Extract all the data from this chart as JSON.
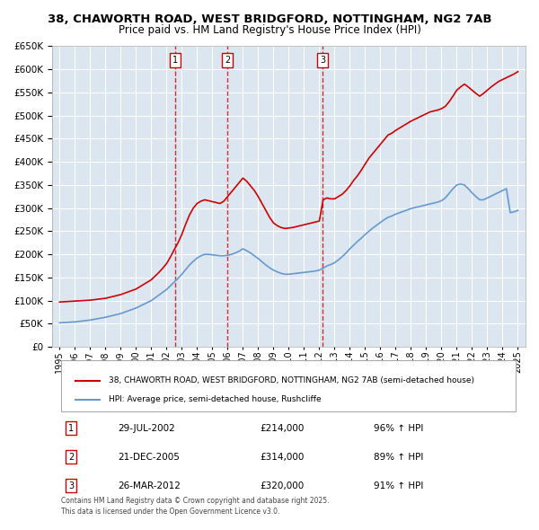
{
  "title_line1": "38, CHAWORTH ROAD, WEST BRIDGFORD, NOTTINGHAM, NG2 7AB",
  "title_line2": "Price paid vs. HM Land Registry's House Price Index (HPI)",
  "bg_color": "#dce6f1",
  "plot_bg_color": "#dce6f1",
  "grid_color": "#ffffff",
  "red_line_color": "#cc0000",
  "blue_line_color": "#6699cc",
  "ylim": [
    0,
    650000
  ],
  "yticks": [
    0,
    50000,
    100000,
    150000,
    200000,
    250000,
    300000,
    350000,
    400000,
    450000,
    500000,
    550000,
    600000,
    650000
  ],
  "xlim_start": 1994.5,
  "xlim_end": 2025.5,
  "xticks": [
    1995,
    1996,
    1997,
    1998,
    1999,
    2000,
    2001,
    2002,
    2003,
    2004,
    2005,
    2006,
    2007,
    2008,
    2009,
    2010,
    2011,
    2012,
    2013,
    2014,
    2015,
    2016,
    2017,
    2018,
    2019,
    2020,
    2021,
    2022,
    2023,
    2024,
    2025
  ],
  "transactions": [
    {
      "num": 1,
      "date": "29-JUL-2002",
      "year": 2002.57,
      "price": 214000,
      "hpi_pct": "96%",
      "hpi_dir": "↑"
    },
    {
      "num": 2,
      "date": "21-DEC-2005",
      "year": 2005.97,
      "price": 314000,
      "hpi_pct": "89%",
      "hpi_dir": "↑"
    },
    {
      "num": 3,
      "date": "26-MAR-2012",
      "year": 2012.23,
      "price": 320000,
      "hpi_pct": "91%",
      "hpi_dir": "↑"
    }
  ],
  "legend_label_red": "38, CHAWORTH ROAD, WEST BRIDGFORD, NOTTINGHAM, NG2 7AB (semi-detached house)",
  "legend_label_blue": "HPI: Average price, semi-detached house, Rushcliffe",
  "footer": "Contains HM Land Registry data © Crown copyright and database right 2025.\nThis data is licensed under the Open Government Licence v3.0.",
  "red_line_x": [
    1995.0,
    1995.25,
    1995.5,
    1995.75,
    1996.0,
    1996.25,
    1996.5,
    1996.75,
    1997.0,
    1997.25,
    1997.5,
    1997.75,
    1998.0,
    1998.25,
    1998.5,
    1998.75,
    1999.0,
    1999.25,
    1999.5,
    1999.75,
    2000.0,
    2000.25,
    2000.5,
    2000.75,
    2001.0,
    2001.25,
    2001.5,
    2001.75,
    2002.0,
    2002.25,
    2002.5,
    2002.75,
    2003.0,
    2003.25,
    2003.5,
    2003.75,
    2004.0,
    2004.25,
    2004.5,
    2004.75,
    2005.0,
    2005.25,
    2005.5,
    2005.75,
    2006.0,
    2006.25,
    2006.5,
    2006.75,
    2007.0,
    2007.25,
    2007.5,
    2007.75,
    2008.0,
    2008.25,
    2008.5,
    2008.75,
    2009.0,
    2009.25,
    2009.5,
    2009.75,
    2010.0,
    2010.25,
    2010.5,
    2010.75,
    2011.0,
    2011.25,
    2011.5,
    2011.75,
    2012.0,
    2012.25,
    2012.5,
    2012.75,
    2013.0,
    2013.25,
    2013.5,
    2013.75,
    2014.0,
    2014.25,
    2014.5,
    2014.75,
    2015.0,
    2015.25,
    2015.5,
    2015.75,
    2016.0,
    2016.25,
    2016.5,
    2016.75,
    2017.0,
    2017.25,
    2017.5,
    2017.75,
    2018.0,
    2018.25,
    2018.5,
    2018.75,
    2019.0,
    2019.25,
    2019.5,
    2019.75,
    2020.0,
    2020.25,
    2020.5,
    2020.75,
    2021.0,
    2021.25,
    2021.5,
    2021.75,
    2022.0,
    2022.25,
    2022.5,
    2022.75,
    2023.0,
    2023.25,
    2023.5,
    2023.75,
    2024.0,
    2024.25,
    2024.5,
    2024.75,
    2025.0
  ],
  "red_line_y": [
    97000,
    97500,
    98000,
    98500,
    99000,
    99500,
    100000,
    100500,
    101000,
    102000,
    103000,
    104000,
    105000,
    107000,
    109000,
    111000,
    113000,
    116000,
    119000,
    122000,
    125000,
    130000,
    135000,
    140000,
    145000,
    153000,
    161000,
    170000,
    180000,
    194000,
    210000,
    225000,
    243000,
    265000,
    285000,
    300000,
    310000,
    315000,
    318000,
    316000,
    314000,
    312000,
    310000,
    315000,
    325000,
    335000,
    345000,
    355000,
    365000,
    358000,
    348000,
    338000,
    325000,
    310000,
    295000,
    280000,
    268000,
    262000,
    258000,
    256000,
    257000,
    258000,
    260000,
    262000,
    264000,
    266000,
    268000,
    270000,
    272000,
    318000,
    322000,
    320000,
    320000,
    325000,
    330000,
    338000,
    348000,
    360000,
    370000,
    382000,
    395000,
    408000,
    418000,
    428000,
    438000,
    448000,
    458000,
    462000,
    468000,
    473000,
    478000,
    483000,
    488000,
    492000,
    496000,
    500000,
    504000,
    508000,
    510000,
    512000,
    515000,
    520000,
    530000,
    542000,
    555000,
    562000,
    568000,
    562000,
    555000,
    548000,
    542000,
    548000,
    555000,
    562000,
    568000,
    574000,
    578000,
    582000,
    586000,
    590000,
    595000
  ],
  "blue_line_x": [
    1995.0,
    1995.25,
    1995.5,
    1995.75,
    1996.0,
    1996.25,
    1996.5,
    1996.75,
    1997.0,
    1997.25,
    1997.5,
    1997.75,
    1998.0,
    1998.25,
    1998.5,
    1998.75,
    1999.0,
    1999.25,
    1999.5,
    1999.75,
    2000.0,
    2000.25,
    2000.5,
    2000.75,
    2001.0,
    2001.25,
    2001.5,
    2001.75,
    2002.0,
    2002.25,
    2002.5,
    2002.75,
    2003.0,
    2003.25,
    2003.5,
    2003.75,
    2004.0,
    2004.25,
    2004.5,
    2004.75,
    2005.0,
    2005.25,
    2005.5,
    2005.75,
    2006.0,
    2006.25,
    2006.5,
    2006.75,
    2007.0,
    2007.25,
    2007.5,
    2007.75,
    2008.0,
    2008.25,
    2008.5,
    2008.75,
    2009.0,
    2009.25,
    2009.5,
    2009.75,
    2010.0,
    2010.25,
    2010.5,
    2010.75,
    2011.0,
    2011.25,
    2011.5,
    2011.75,
    2012.0,
    2012.25,
    2012.5,
    2012.75,
    2013.0,
    2013.25,
    2013.5,
    2013.75,
    2014.0,
    2014.25,
    2014.5,
    2014.75,
    2015.0,
    2015.25,
    2015.5,
    2015.75,
    2016.0,
    2016.25,
    2016.5,
    2016.75,
    2017.0,
    2017.25,
    2017.5,
    2017.75,
    2018.0,
    2018.25,
    2018.5,
    2018.75,
    2019.0,
    2019.25,
    2019.5,
    2019.75,
    2020.0,
    2020.25,
    2020.5,
    2020.75,
    2021.0,
    2021.25,
    2021.5,
    2021.75,
    2022.0,
    2022.25,
    2022.5,
    2022.75,
    2023.0,
    2023.25,
    2023.5,
    2023.75,
    2024.0,
    2024.25,
    2024.5,
    2024.75,
    2025.0
  ],
  "blue_line_y": [
    52000,
    52500,
    53000,
    53500,
    54000,
    55000,
    56000,
    57000,
    58000,
    59500,
    61000,
    62500,
    64000,
    66000,
    68000,
    70000,
    72000,
    75000,
    78000,
    81000,
    84000,
    88000,
    92000,
    96000,
    100000,
    106000,
    112000,
    118000,
    124000,
    132000,
    140000,
    148000,
    157000,
    167000,
    177000,
    185000,
    192000,
    197000,
    200000,
    200000,
    199000,
    198000,
    197000,
    197000,
    198000,
    200000,
    203000,
    207000,
    212000,
    208000,
    203000,
    197000,
    191000,
    184000,
    177000,
    171000,
    166000,
    162000,
    159000,
    157000,
    157000,
    158000,
    159000,
    160000,
    161000,
    162000,
    163000,
    164000,
    166000,
    170000,
    175000,
    178000,
    182000,
    188000,
    195000,
    203000,
    212000,
    220000,
    228000,
    235000,
    243000,
    250000,
    257000,
    263000,
    269000,
    275000,
    280000,
    283000,
    287000,
    290000,
    293000,
    296000,
    299000,
    301000,
    303000,
    305000,
    307000,
    309000,
    311000,
    313000,
    316000,
    322000,
    332000,
    342000,
    350000,
    352000,
    350000,
    342000,
    333000,
    325000,
    318000,
    318000,
    322000,
    326000,
    330000,
    334000,
    338000,
    342000,
    290000,
    292000,
    295000
  ]
}
